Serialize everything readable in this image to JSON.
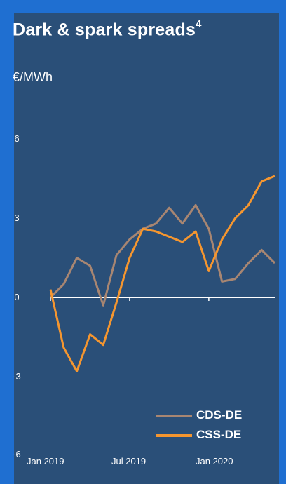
{
  "panel": {
    "title": "Dark & spark spreads",
    "title_sup": "4",
    "unit": "€/MWh"
  },
  "chart_data": {
    "type": "line",
    "title": "Dark & spark spreads",
    "ylabel": "€/MWh",
    "xlabel": "",
    "ylim": [
      -6,
      7
    ],
    "yticks": [
      "6",
      "3",
      "0",
      "-3",
      "-6"
    ],
    "xtick_labels": [
      "Jan 2019",
      "Jul 2019",
      "Jan 2020"
    ],
    "grid": false,
    "legend_position": "bottom-right",
    "x": [
      "2019-01",
      "2019-02",
      "2019-03",
      "2019-04",
      "2019-05",
      "2019-06",
      "2019-07",
      "2019-08",
      "2019-09",
      "2019-10",
      "2019-11",
      "2019-12",
      "2020-01",
      "2020-02",
      "2020-03",
      "2020-04",
      "2020-05",
      "2020-06"
    ],
    "series": [
      {
        "name": "CDS-DE",
        "color": "#a88672",
        "values": [
          0.0,
          0.5,
          1.5,
          1.2,
          -0.3,
          1.6,
          2.2,
          2.6,
          2.8,
          3.4,
          2.8,
          3.5,
          2.6,
          0.6,
          0.7,
          1.3,
          1.8,
          1.3
        ]
      },
      {
        "name": "CSS-DE",
        "color": "#f5962f",
        "values": [
          0.3,
          -1.9,
          -2.8,
          -1.4,
          -1.8,
          -0.2,
          1.5,
          2.6,
          2.5,
          2.3,
          2.1,
          2.5,
          1.0,
          2.2,
          3.0,
          3.5,
          4.4,
          4.6
        ]
      }
    ]
  }
}
